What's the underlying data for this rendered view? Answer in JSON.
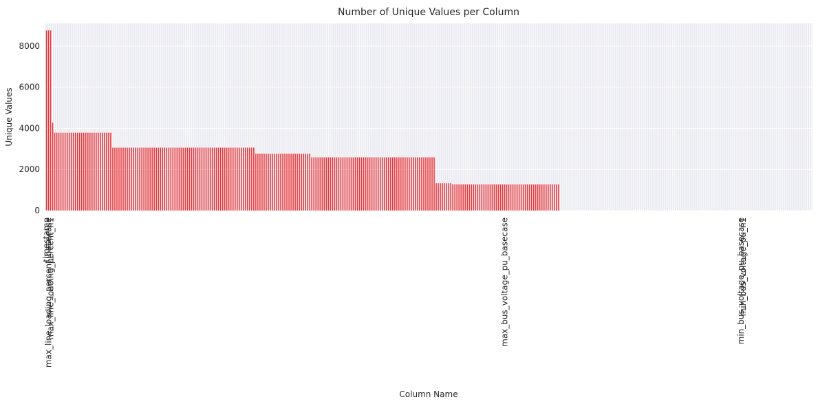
{
  "chart_data": {
    "type": "bar",
    "title": "Number of Unique Values per Column",
    "xlabel": "Column Name",
    "ylabel": "Unique Values",
    "ylim": [
      0,
      9100
    ],
    "yticks": [
      0,
      2000,
      4000,
      6000,
      8000
    ],
    "grid": true,
    "bar_color": "#ee3333",
    "background_color": "#eaeaf2",
    "grid_color": "#ffffff",
    "categories": [
      "timestamp",
      "max_line_loading_percent_basecase",
      "max_line_loading_percent_n1",
      "",
      "",
      "",
      "",
      "",
      "",
      "",
      "",
      "",
      "",
      "",
      "",
      "",
      "",
      "",
      "",
      "",
      "",
      "",
      "",
      "",
      "",
      "",
      "",
      "",
      "",
      "",
      "",
      "",
      "",
      "",
      "",
      "",
      "",
      "",
      "",
      "",
      "",
      "",
      "",
      "",
      "",
      "",
      "",
      "",
      "",
      "",
      "",
      "",
      "",
      "",
      "",
      "",
      "",
      "",
      "",
      "",
      "",
      "",
      "",
      "",
      "",
      "",
      "",
      "",
      "",
      "",
      "",
      "",
      "",
      "",
      "",
      "",
      "",
      "",
      "",
      "",
      "",
      "",
      "",
      "",
      "",
      "",
      "",
      "",
      "",
      "",
      "",
      "",
      "",
      "",
      "",
      "",
      "",
      "",
      "",
      "",
      "",
      "",
      "",
      "",
      "",
      "",
      "",
      "",
      "",
      "",
      "",
      "",
      "",
      "",
      "",
      "",
      "",
      "",
      "",
      "",
      "",
      "",
      "",
      "",
      "",
      "",
      "",
      "",
      "",
      "",
      "",
      "",
      "",
      "",
      "",
      "",
      "",
      "",
      "",
      "",
      "",
      "",
      "",
      "",
      "",
      "",
      "",
      "",
      "",
      "",
      "",
      "",
      "",
      "",
      "",
      "",
      "",
      "",
      "",
      "",
      "",
      "",
      "",
      "",
      "",
      "",
      "",
      "",
      "",
      "",
      "",
      "",
      "",
      "",
      "",
      "",
      "",
      "",
      "",
      "",
      "",
      "",
      "",
      "",
      "",
      "",
      "",
      "",
      "",
      "",
      "",
      "",
      "",
      "",
      "",
      "",
      "",
      "",
      "",
      "",
      "",
      "",
      "",
      "",
      "",
      "",
      "",
      "",
      "",
      "",
      "",
      "",
      "",
      "",
      "",
      "",
      "",
      "",
      "",
      "",
      "",
      "max_bus_voltage_pu_basecase",
      "",
      "",
      "",
      "",
      "",
      "",
      "",
      "",
      "",
      "",
      "",
      "",
      "",
      "",
      "",
      "",
      "",
      "",
      "",
      "",
      "",
      "",
      "",
      "",
      "",
      "",
      "",
      "",
      "",
      "",
      "",
      "",
      "",
      "",
      "",
      "",
      "",
      "",
      "",
      "",
      "",
      "",
      "",
      "",
      "",
      "",
      "",
      "",
      "",
      "",
      "",
      "",
      "",
      "",
      "",
      "",
      "",
      "",
      "",
      "",
      "",
      "",
      "",
      "",
      "",
      "",
      "",
      "",
      "",
      "",
      "",
      "",
      "",
      "",
      "",
      "",
      "",
      "",
      "",
      "",
      "",
      "",
      "",
      "",
      "",
      "",
      "",
      "",
      "",
      "",
      "",
      "",
      "",
      "",
      "",
      "",
      "",
      "",
      "",
      "",
      "",
      "",
      "",
      "",
      "",
      "",
      "",
      "",
      "",
      "",
      "",
      "",
      "",
      "min_bus_voltage_pu_basecase",
      "min_bus_voltage_pu_n1",
      "",
      "",
      "",
      "",
      "",
      "",
      "",
      "",
      "",
      "",
      "",
      "",
      "",
      "",
      "",
      "",
      "",
      "",
      "",
      "",
      "",
      "",
      "",
      "",
      "",
      "",
      "",
      "",
      "",
      "",
      "",
      "",
      "",
      "",
      "",
      "",
      "",
      "",
      "",
      "",
      "",
      "",
      "",
      "",
      "",
      "",
      "",
      "",
      "",
      "",
      "",
      "",
      "",
      "",
      "",
      "",
      "",
      "",
      "",
      "",
      "",
      "",
      "",
      "",
      "",
      "",
      ""
    ],
    "segments": [
      {
        "count": 3,
        "value": 8760
      },
      {
        "count": 1,
        "value": 4270
      },
      {
        "count": 28,
        "value": 3790
      },
      {
        "count": 69,
        "value": 3060
      },
      {
        "count": 27,
        "value": 2760
      },
      {
        "count": 60,
        "value": 2590
      },
      {
        "count": 8,
        "value": 1330
      },
      {
        "count": 52,
        "value": 1270
      },
      {
        "count": 122,
        "value": 0
      }
    ]
  }
}
